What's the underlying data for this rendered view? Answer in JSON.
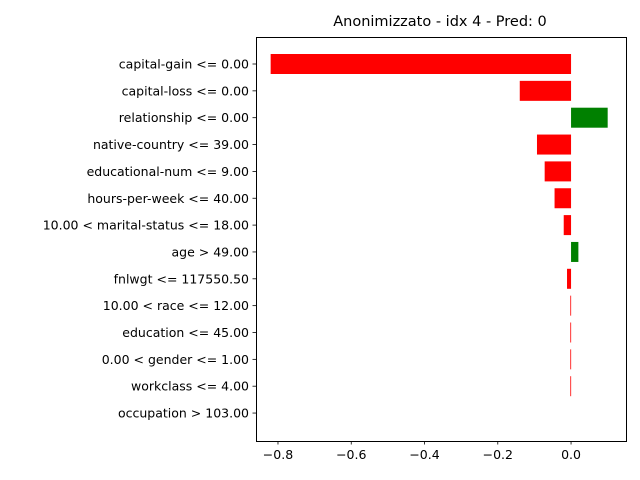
{
  "chart_data": {
    "type": "bar",
    "orientation": "horizontal",
    "title": "Anonimizzato - idx 4 - Pred: 0",
    "xlabel": "",
    "ylabel": "",
    "xlim": [
      -0.86,
      0.15
    ],
    "xticks": [
      -0.8,
      -0.6,
      -0.4,
      -0.2,
      0.0
    ],
    "xtick_labels": [
      "−0.8",
      "−0.6",
      "−0.4",
      "−0.2",
      "0.0"
    ],
    "grid": false,
    "legend": false,
    "categories": [
      "capital-gain <= 0.00",
      "capital-loss <= 0.00",
      "relationship <= 0.00",
      "native-country <= 39.00",
      "educational-num <= 9.00",
      "hours-per-week <= 40.00",
      "10.00 < marital-status <= 18.00",
      "age > 49.00",
      "fnlwgt <= 117550.50",
      "10.00 < race <= 12.00",
      "education <= 45.00",
      "0.00 < gender <= 1.00",
      "workclass <= 4.00",
      "occupation > 103.00"
    ],
    "values": [
      -0.82,
      -0.14,
      0.1,
      -0.093,
      -0.072,
      -0.045,
      -0.02,
      0.02,
      -0.011,
      -0.002,
      -0.002,
      -0.002,
      -0.002,
      0.0
    ],
    "colors": {
      "negative": "#ff0000",
      "positive": "#008000",
      "axis": "#000000"
    }
  }
}
